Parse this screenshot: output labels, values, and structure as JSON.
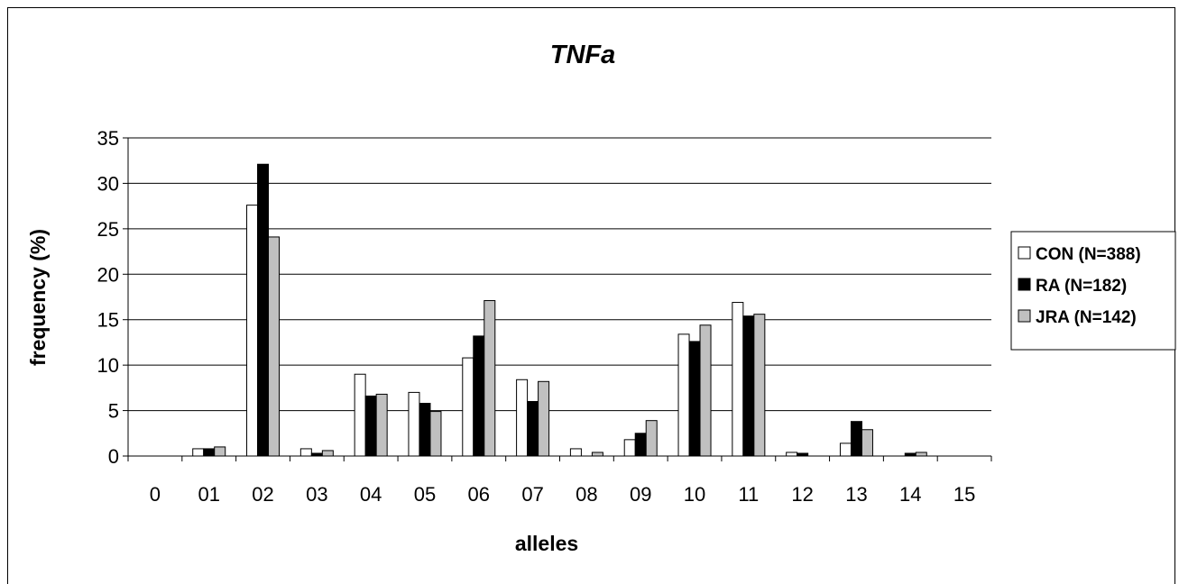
{
  "chart_data": {
    "type": "bar",
    "title": "TNFa",
    "xlabel": "alleles",
    "ylabel": "frequency (%)",
    "ylim": [
      0,
      35
    ],
    "yticks": [
      0,
      5,
      10,
      15,
      20,
      25,
      30,
      35
    ],
    "grid": "horizontal",
    "legend_position": "right",
    "categories": [
      "0",
      "01",
      "02",
      "03",
      "04",
      "05",
      "06",
      "07",
      "08",
      "09",
      "10",
      "11",
      "12",
      "13",
      "14",
      "15"
    ],
    "series": [
      {
        "name": "CON (N=388)",
        "color": "#ffffff",
        "values": [
          0,
          0.8,
          27.6,
          0.8,
          9.0,
          7.0,
          10.8,
          8.4,
          0.8,
          1.8,
          13.4,
          16.9,
          0.4,
          1.4,
          0,
          0
        ]
      },
      {
        "name": "RA (N=182)",
        "color": "#000000",
        "values": [
          0,
          0.8,
          32.1,
          0.3,
          6.6,
          5.8,
          13.2,
          6.0,
          0,
          2.5,
          12.6,
          15.4,
          0.3,
          3.8,
          0.3,
          0
        ]
      },
      {
        "name": "JRA (N=142)",
        "color": "#c0c0c0",
        "values": [
          0,
          1.0,
          24.1,
          0.6,
          6.8,
          4.9,
          17.1,
          8.2,
          0.4,
          3.9,
          14.4,
          15.6,
          0,
          2.9,
          0.4,
          0
        ]
      }
    ]
  }
}
